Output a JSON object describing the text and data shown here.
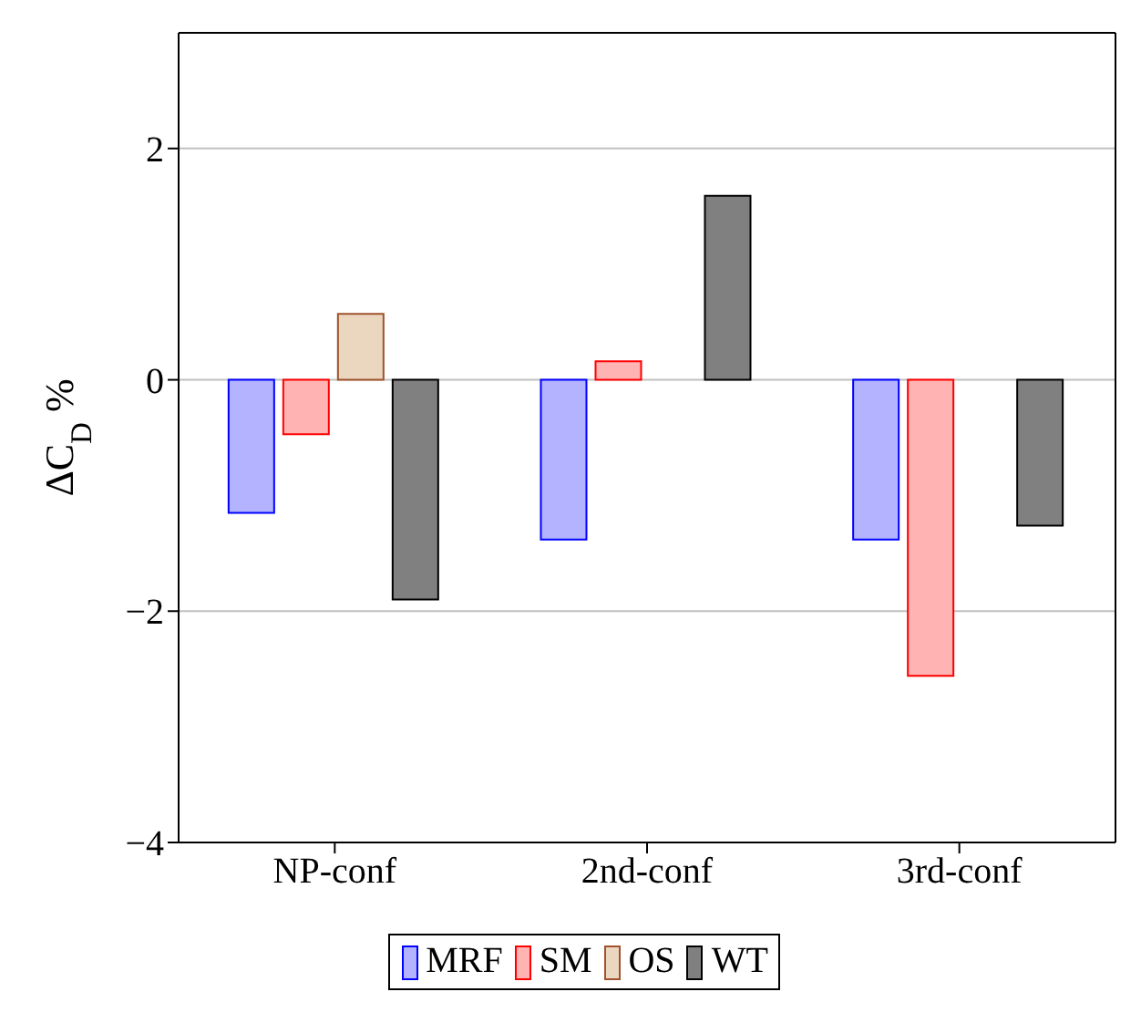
{
  "chart_data": {
    "type": "bar",
    "ylabel": "ΔC$_{D}$ %",
    "categories": [
      "NP-conf",
      "2nd-conf",
      "3rd-conf"
    ],
    "series": [
      {
        "name": "MRF",
        "color": "#b3b3ff",
        "values": [
          -1.15,
          -1.38,
          -1.38
        ]
      },
      {
        "name": "SM",
        "color": "#ffb3b3",
        "values": [
          -0.47,
          0.16,
          -2.56
        ]
      },
      {
        "name": "OS",
        "color": "#ebd6c0",
        "values": [
          0.57,
          0.0,
          0.0
        ]
      },
      {
        "name": "WT",
        "color": "#808080",
        "values": [
          -1.9,
          1.59,
          -1.26
        ]
      }
    ],
    "ylim": [
      -4,
      3
    ],
    "yticks": [
      -4,
      -2,
      0,
      2
    ],
    "grid": "y",
    "legend": "bottom"
  }
}
